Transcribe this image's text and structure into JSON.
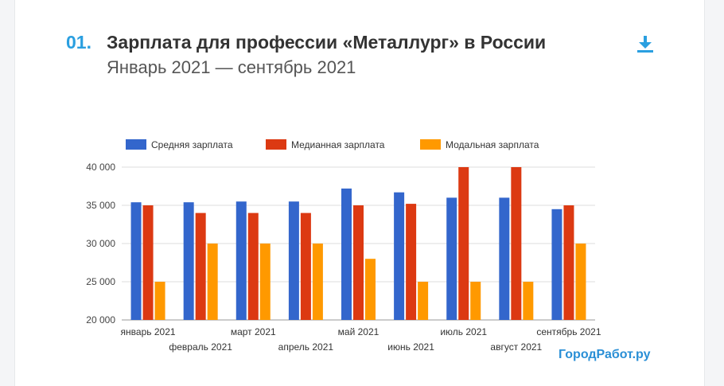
{
  "header": {
    "number": "01.",
    "title": "Зарплата для профессии «Металлург» в России",
    "subtitle": "Январь 2021 — сентябрь 2021",
    "download_icon": "download-icon"
  },
  "brand": "ГородРабот.ру",
  "colors": {
    "accent": "#2a9fe0",
    "series": [
      "#3366cc",
      "#dc3912",
      "#ff9900"
    ]
  },
  "chart_data": {
    "type": "bar",
    "categories": [
      "январь 2021",
      "февраль 2021",
      "март 2021",
      "апрель 2021",
      "май 2021",
      "июнь 2021",
      "июль 2021",
      "август 2021",
      "сентябрь 2021"
    ],
    "series": [
      {
        "name": "Средняя зарплата",
        "values": [
          35400,
          35400,
          35500,
          35500,
          37200,
          36700,
          36000,
          36000,
          34500
        ]
      },
      {
        "name": "Медианная зарплата",
        "values": [
          35000,
          34000,
          34000,
          34000,
          35000,
          35200,
          40000,
          40000,
          35000
        ]
      },
      {
        "name": "Модальная зарплата",
        "values": [
          25000,
          30000,
          30000,
          30000,
          28000,
          25000,
          25000,
          25000,
          30000
        ]
      }
    ],
    "ylim": [
      20000,
      40000
    ],
    "yticks": [
      "20 000",
      "25 000",
      "30 000",
      "35 000",
      "40 000"
    ],
    "grid": true,
    "legend": "top"
  }
}
